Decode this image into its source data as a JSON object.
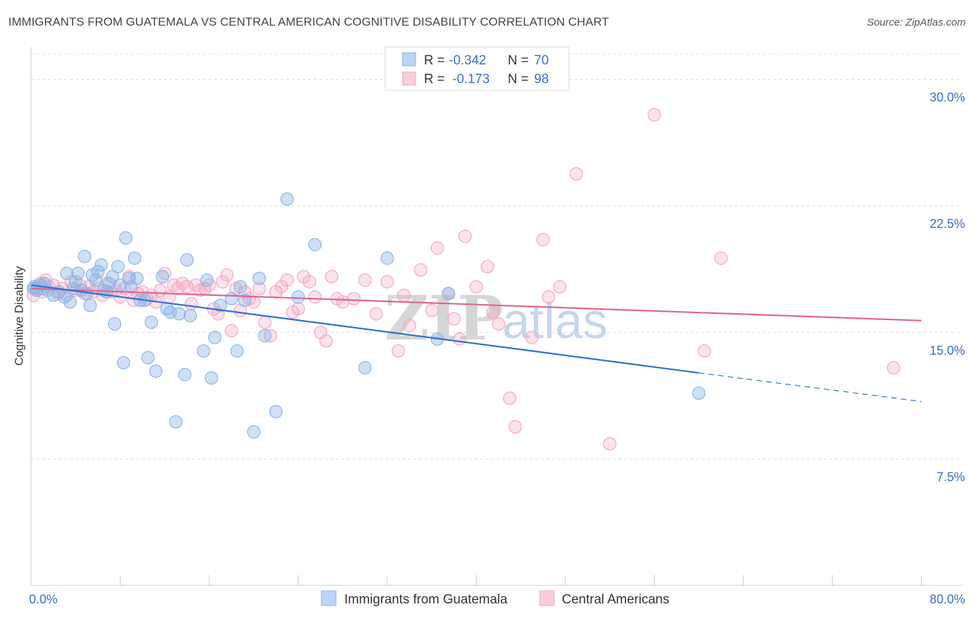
{
  "title": "IMMIGRANTS FROM GUATEMALA VS CENTRAL AMERICAN COGNITIVE DISABILITY CORRELATION CHART",
  "source": "Source: ZipAtlas.com",
  "watermark": {
    "zip": "ZIP",
    "atlas": "atlas"
  },
  "chart_data": {
    "type": "scatter",
    "xlabel": "",
    "ylabel": "Cognitive Disability",
    "xlim": [
      0,
      80
    ],
    "ylim": [
      0,
      31.5
    ],
    "x_tick_labels": [
      {
        "value": 0,
        "label": "0.0%"
      },
      {
        "value": 80,
        "label": "80.0%"
      }
    ],
    "y_tick_labels": [
      {
        "value": 30,
        "label": "30.0%"
      },
      {
        "value": 22.5,
        "label": "22.5%"
      },
      {
        "value": 15,
        "label": "15.0%"
      },
      {
        "value": 7.5,
        "label": "7.5%"
      }
    ],
    "grid": "horizontal dashed",
    "legend_position": "top-center",
    "legend": [
      {
        "r_label": "R =",
        "r_value": "-0.342",
        "n_label": "N =",
        "n_value": "70"
      },
      {
        "r_label": "R =",
        "r_value": "-0.173",
        "n_label": "N =",
        "n_value": "98"
      }
    ],
    "series": [
      {
        "name": "Immigrants from Guatemala",
        "color": "#8ab4e8",
        "line_color": "#2f6fcf",
        "trend": {
          "x": [
            0,
            60
          ],
          "y": [
            17.8,
            12.6
          ],
          "dashed_to": [
            80,
            10.9
          ]
        },
        "points": [
          [
            0.3,
            17.7
          ],
          [
            0.5,
            17.5
          ],
          [
            0.8,
            17.8
          ],
          [
            1.0,
            17.6
          ],
          [
            1.2,
            17.9
          ],
          [
            1.5,
            17.5
          ],
          [
            2.0,
            17.2
          ],
          [
            2.5,
            17.4
          ],
          [
            3.0,
            17.1
          ],
          [
            3.2,
            18.5
          ],
          [
            3.5,
            16.8
          ],
          [
            3.8,
            17.6
          ],
          [
            4.0,
            18.0
          ],
          [
            4.2,
            18.5
          ],
          [
            4.5,
            17.5
          ],
          [
            4.8,
            19.5
          ],
          [
            5.0,
            17.3
          ],
          [
            5.3,
            16.6
          ],
          [
            5.5,
            18.4
          ],
          [
            5.8,
            18.1
          ],
          [
            6.0,
            18.6
          ],
          [
            6.3,
            19.0
          ],
          [
            6.5,
            17.5
          ],
          [
            6.8,
            17.4
          ],
          [
            7.0,
            17.9
          ],
          [
            7.3,
            18.3
          ],
          [
            7.5,
            15.5
          ],
          [
            7.8,
            18.9
          ],
          [
            8.0,
            17.8
          ],
          [
            8.3,
            13.2
          ],
          [
            8.5,
            20.6
          ],
          [
            8.8,
            18.2
          ],
          [
            9.0,
            17.7
          ],
          [
            9.3,
            19.4
          ],
          [
            9.5,
            18.2
          ],
          [
            9.8,
            16.9
          ],
          [
            10.2,
            16.9
          ],
          [
            10.5,
            13.5
          ],
          [
            10.8,
            15.6
          ],
          [
            11.2,
            12.7
          ],
          [
            11.8,
            18.3
          ],
          [
            12.2,
            16.4
          ],
          [
            12.5,
            16.2
          ],
          [
            13.0,
            9.7
          ],
          [
            13.3,
            16.1
          ],
          [
            13.8,
            12.5
          ],
          [
            14.0,
            19.3
          ],
          [
            14.3,
            16.0
          ],
          [
            15.5,
            13.9
          ],
          [
            15.8,
            18.1
          ],
          [
            16.2,
            12.3
          ],
          [
            16.5,
            14.7
          ],
          [
            17.0,
            16.6
          ],
          [
            18.0,
            17.0
          ],
          [
            18.5,
            13.9
          ],
          [
            18.8,
            17.7
          ],
          [
            19.2,
            16.9
          ],
          [
            20.0,
            9.1
          ],
          [
            20.5,
            18.2
          ],
          [
            21.0,
            14.8
          ],
          [
            22.0,
            10.3
          ],
          [
            23.0,
            22.9
          ],
          [
            24.0,
            17.1
          ],
          [
            25.5,
            20.2
          ],
          [
            30.0,
            12.9
          ],
          [
            32.0,
            19.4
          ],
          [
            36.5,
            14.6
          ],
          [
            37.5,
            17.3
          ],
          [
            60.0,
            11.4
          ],
          [
            0.2,
            17.6
          ]
        ]
      },
      {
        "name": "Central Americans",
        "color": "#f4a6c0",
        "line_color": "#e0648e",
        "trend": {
          "x": [
            0,
            80
          ],
          "y": [
            17.6,
            15.7
          ]
        },
        "points": [
          [
            0.2,
            17.2
          ],
          [
            0.5,
            17.6
          ],
          [
            0.8,
            17.9
          ],
          [
            1.0,
            17.4
          ],
          [
            1.3,
            18.1
          ],
          [
            1.6,
            17.7
          ],
          [
            2.0,
            17.8
          ],
          [
            2.4,
            17.3
          ],
          [
            2.8,
            17.6
          ],
          [
            3.2,
            17.2
          ],
          [
            3.6,
            18.0
          ],
          [
            4.0,
            17.5
          ],
          [
            4.4,
            17.8
          ],
          [
            4.8,
            17.3
          ],
          [
            5.2,
            17.7
          ],
          [
            5.6,
            17.4
          ],
          [
            6.0,
            17.6
          ],
          [
            6.4,
            17.2
          ],
          [
            6.8,
            17.9
          ],
          [
            7.2,
            17.4
          ],
          [
            7.6,
            17.5
          ],
          [
            8.0,
            17.1
          ],
          [
            8.4,
            17.6
          ],
          [
            8.8,
            18.3
          ],
          [
            9.2,
            16.9
          ],
          [
            9.6,
            17.3
          ],
          [
            10.0,
            17.4
          ],
          [
            10.4,
            17.0
          ],
          [
            10.8,
            17.2
          ],
          [
            11.2,
            16.8
          ],
          [
            11.6,
            17.5
          ],
          [
            12.0,
            18.5
          ],
          [
            12.4,
            17.1
          ],
          [
            12.8,
            17.8
          ],
          [
            13.2,
            17.6
          ],
          [
            13.6,
            17.9
          ],
          [
            14.0,
            17.7
          ],
          [
            14.4,
            16.7
          ],
          [
            14.8,
            17.8
          ],
          [
            15.2,
            17.5
          ],
          [
            15.6,
            17.6
          ],
          [
            16.0,
            17.8
          ],
          [
            16.4,
            16.4
          ],
          [
            16.8,
            16.1
          ],
          [
            17.2,
            18.0
          ],
          [
            17.6,
            18.4
          ],
          [
            18.0,
            15.1
          ],
          [
            18.4,
            17.6
          ],
          [
            18.8,
            16.3
          ],
          [
            19.2,
            17.4
          ],
          [
            19.6,
            17.0
          ],
          [
            20.0,
            16.8
          ],
          [
            20.5,
            17.6
          ],
          [
            21.0,
            15.6
          ],
          [
            21.5,
            14.8
          ],
          [
            22.0,
            17.4
          ],
          [
            22.5,
            17.7
          ],
          [
            23.0,
            18.1
          ],
          [
            23.5,
            16.2
          ],
          [
            24.0,
            16.4
          ],
          [
            24.5,
            18.3
          ],
          [
            25.0,
            18.0
          ],
          [
            25.5,
            17.1
          ],
          [
            26.0,
            15.0
          ],
          [
            26.5,
            14.5
          ],
          [
            27.0,
            18.3
          ],
          [
            27.5,
            17.0
          ],
          [
            28.0,
            16.8
          ],
          [
            29.0,
            17.0
          ],
          [
            30.0,
            18.1
          ],
          [
            31.0,
            16.1
          ],
          [
            32.0,
            18.0
          ],
          [
            33.0,
            13.9
          ],
          [
            33.5,
            17.2
          ],
          [
            34.0,
            15.4
          ],
          [
            35.0,
            18.7
          ],
          [
            36.0,
            16.3
          ],
          [
            36.5,
            20.0
          ],
          [
            37.5,
            17.3
          ],
          [
            38.0,
            15.8
          ],
          [
            38.5,
            14.6
          ],
          [
            39.0,
            20.7
          ],
          [
            40.0,
            17.7
          ],
          [
            41.0,
            18.9
          ],
          [
            41.5,
            16.2
          ],
          [
            42.0,
            15.5
          ],
          [
            43.0,
            11.1
          ],
          [
            43.5,
            9.4
          ],
          [
            45.0,
            14.7
          ],
          [
            46.0,
            20.5
          ],
          [
            46.5,
            17.1
          ],
          [
            47.5,
            17.7
          ],
          [
            49.0,
            24.4
          ],
          [
            52.0,
            8.4
          ],
          [
            56.0,
            27.9
          ],
          [
            60.5,
            13.9
          ],
          [
            62.0,
            19.4
          ],
          [
            77.5,
            12.9
          ]
        ]
      }
    ]
  }
}
